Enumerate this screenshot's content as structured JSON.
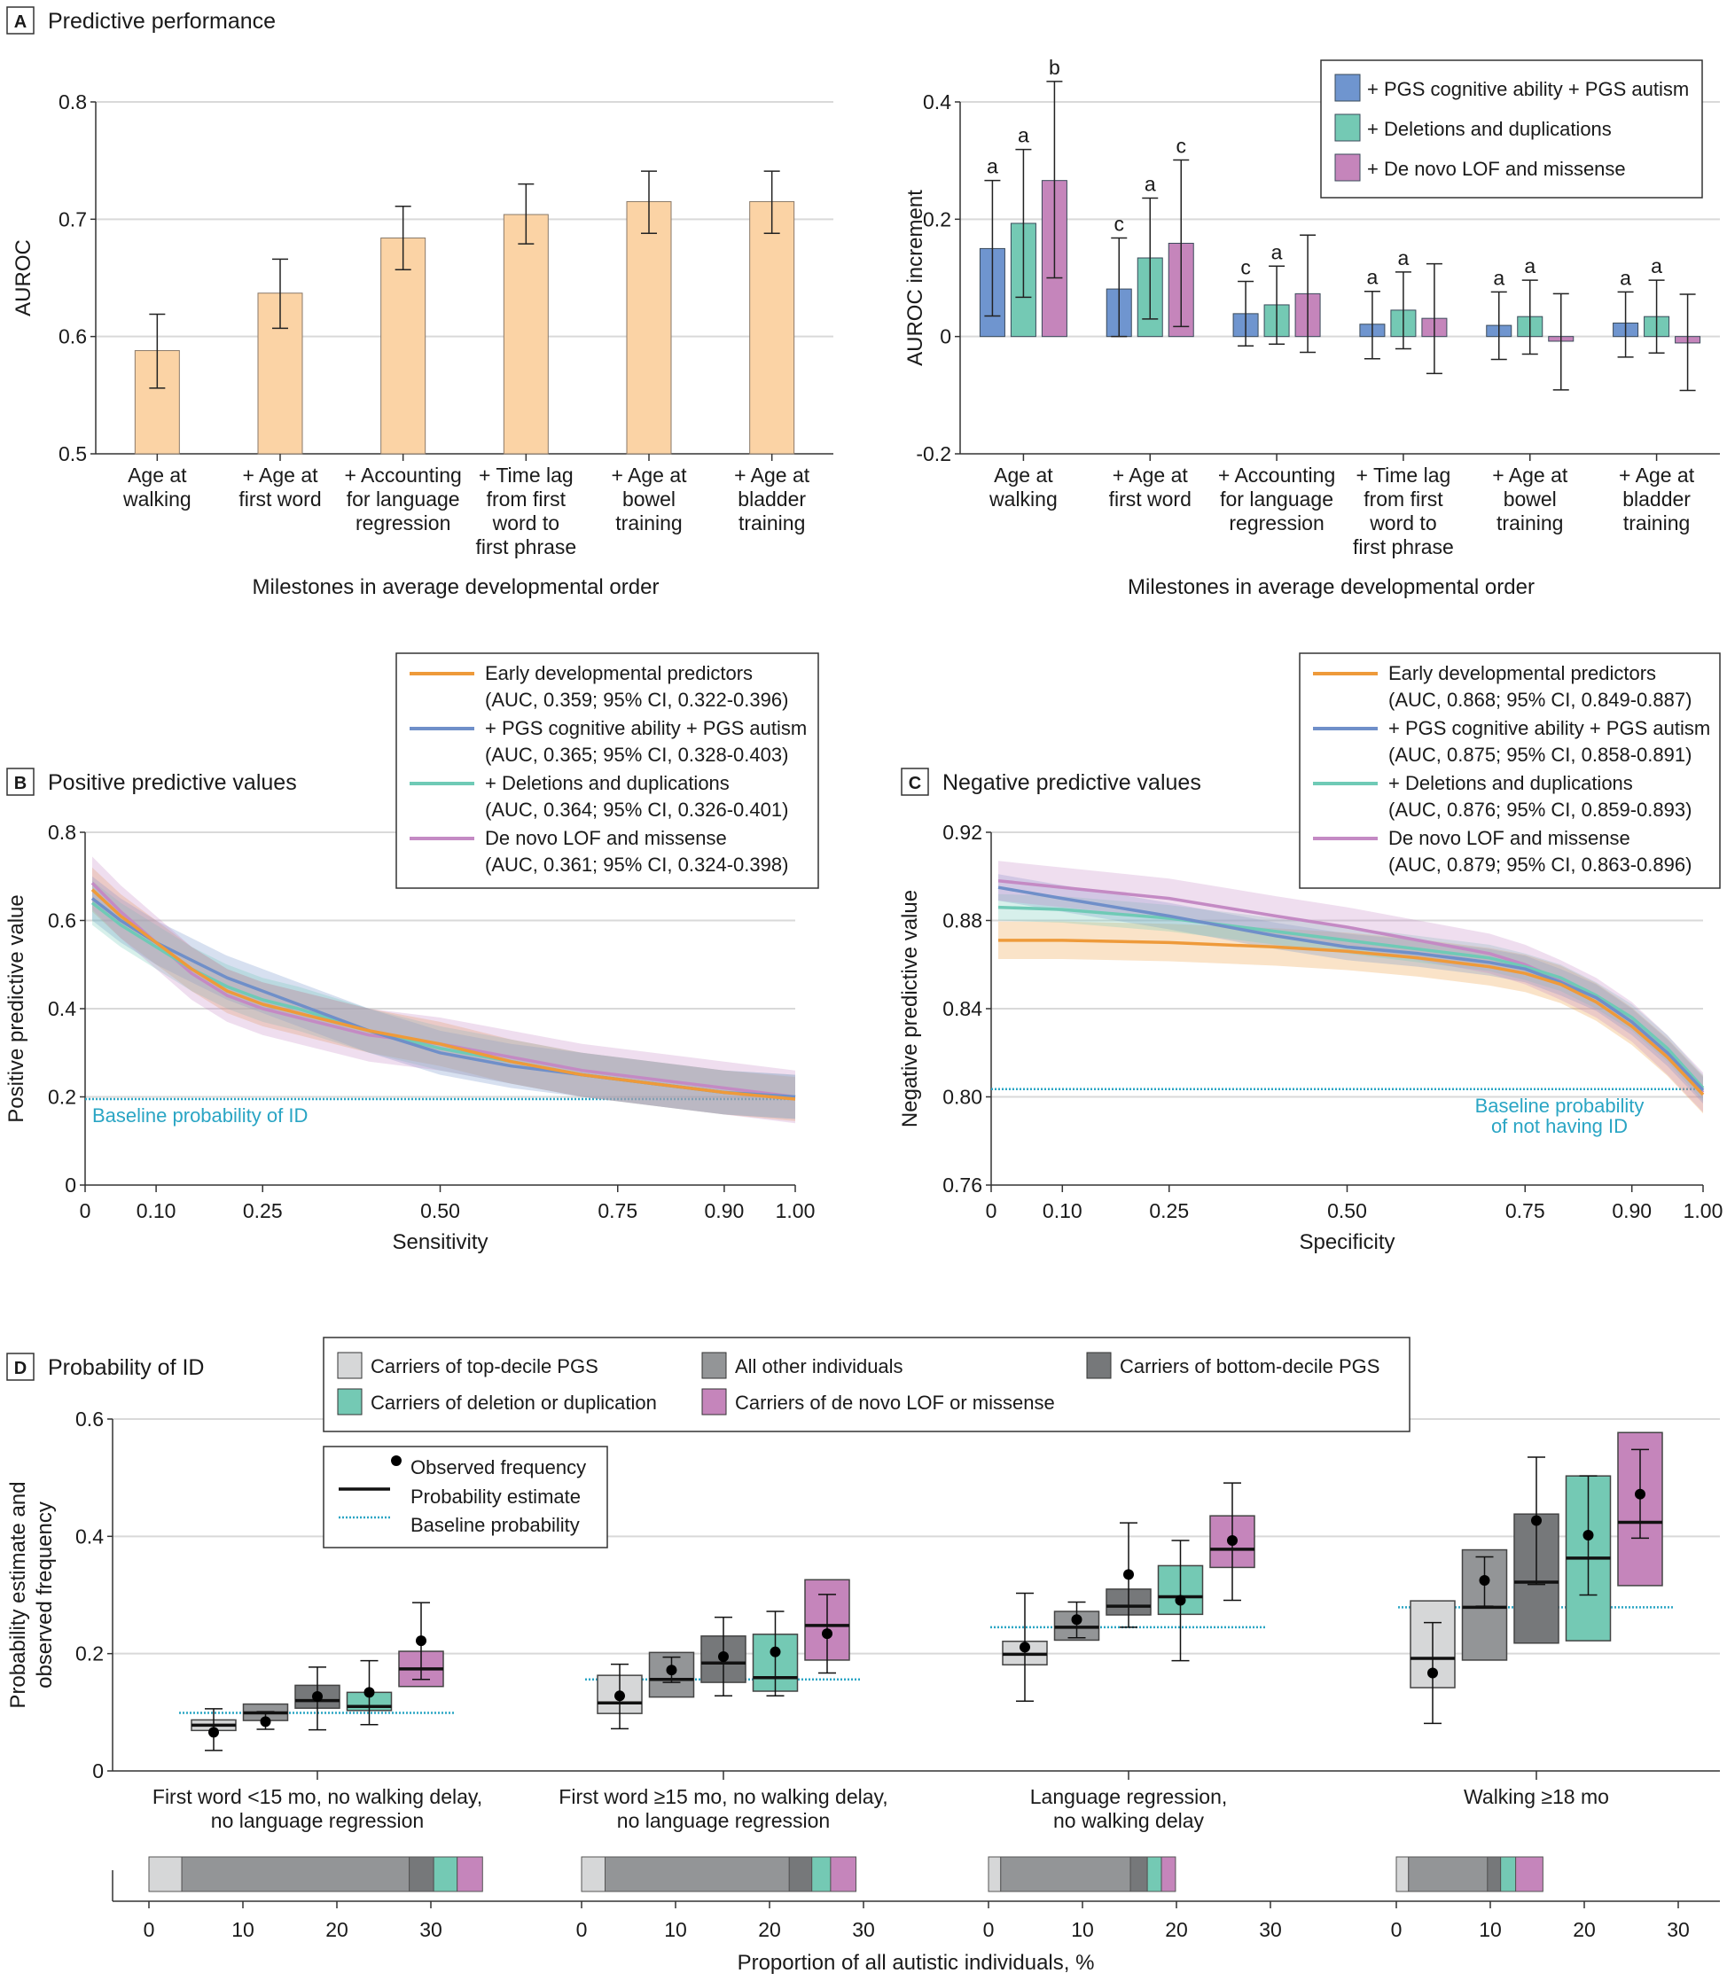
{
  "colors": {
    "orange_bar": "#fbd3a5",
    "blue": "#6f95cf",
    "teal": "#74c9b4",
    "pink": "#c585bb",
    "orange_line": "#ee9a3a",
    "blue_line": "#6f8fc9",
    "teal_line": "#6fcab6",
    "pink_line": "#c48ac4",
    "baseline": "#2aa5c4",
    "light_gray": "#d6d7d8",
    "mid_gray": "#939597",
    "dark_gray": "#76787a"
  },
  "panels": {
    "A": {
      "badge": "A",
      "title": "Predictive performance"
    },
    "B": {
      "badge": "B",
      "title": "Positive predictive values"
    },
    "C": {
      "badge": "C",
      "title": "Negative predictive values"
    },
    "D": {
      "badge": "D",
      "title": "Probability of ID"
    }
  },
  "chart_data": [
    {
      "id": "A-left",
      "type": "bar",
      "title": "Predictive performance",
      "xlabel": "Milestones in average developmental order",
      "ylabel": "AUROC",
      "ylim": [
        0.5,
        0.8
      ],
      "yticks": [
        "0.5",
        "0.6",
        "0.7",
        "0.8"
      ],
      "ytick_values": [
        0.5,
        0.6,
        0.7,
        0.8
      ],
      "grid": true,
      "categories": [
        [
          "Age at",
          "walking"
        ],
        [
          "+ Age at",
          "first word"
        ],
        [
          "+ Accounting",
          "for language",
          "regression"
        ],
        [
          "+ Time lag",
          "from first",
          "word to",
          "first phrase"
        ],
        [
          "+ Age at",
          "bowel",
          "training"
        ],
        [
          "+ Age at",
          "bladder",
          "training"
        ]
      ],
      "values": [
        0.588,
        0.637,
        0.684,
        0.704,
        0.715,
        0.715
      ],
      "ci_low": [
        0.556,
        0.607,
        0.657,
        0.679,
        0.688,
        0.688
      ],
      "ci_high": [
        0.619,
        0.666,
        0.711,
        0.73,
        0.741,
        0.741
      ]
    },
    {
      "id": "A-right",
      "type": "bar",
      "xlabel": "Milestones in average developmental order",
      "ylabel": "AUROC increment",
      "ylim": [
        -0.2,
        0.4
      ],
      "yticks": [
        "-0.2",
        "0",
        "0.2",
        "0.4"
      ],
      "ytick_values": [
        -0.2,
        0,
        0.2,
        0.4
      ],
      "grid": true,
      "legend_position": "top-right",
      "categories": [
        [
          "Age at",
          "walking"
        ],
        [
          "+ Age at",
          "first word"
        ],
        [
          "+ Accounting",
          "for language",
          "regression"
        ],
        [
          "+ Time lag",
          "from first",
          "word to",
          "first phrase"
        ],
        [
          "+ Age at",
          "bowel",
          "training"
        ],
        [
          "+ Age at",
          "bladder",
          "training"
        ]
      ],
      "series": [
        {
          "name": "+ PGS cognitive ability + PGS autism",
          "color_key": "blue",
          "values": [
            0.15,
            0.081,
            0.039,
            0.021,
            0.019,
            0.023
          ],
          "ci_low": [
            0.035,
            0.0,
            -0.016,
            -0.038,
            -0.039,
            -0.035
          ],
          "ci_high": [
            0.266,
            0.168,
            0.094,
            0.077,
            0.076,
            0.076
          ],
          "annotations": [
            "a",
            "c",
            "c",
            "a",
            "a",
            "a"
          ]
        },
        {
          "name": "+ Deletions and duplications",
          "color_key": "teal",
          "values": [
            0.193,
            0.134,
            0.054,
            0.045,
            0.034,
            0.034
          ],
          "ci_low": [
            0.067,
            0.03,
            -0.013,
            -0.021,
            -0.03,
            -0.028
          ],
          "ci_high": [
            0.319,
            0.236,
            0.12,
            0.11,
            0.096,
            0.096
          ],
          "annotations": [
            "a",
            "a",
            "a",
            "a",
            "a",
            "a"
          ]
        },
        {
          "name": "+ De novo LOF and missense",
          "color_key": "pink",
          "values": [
            0.266,
            0.159,
            0.073,
            0.031,
            -0.008,
            -0.011
          ],
          "ci_low": [
            0.1,
            0.017,
            -0.027,
            -0.063,
            -0.091,
            -0.092
          ],
          "ci_high": [
            0.435,
            0.301,
            0.173,
            0.124,
            0.073,
            0.072
          ],
          "annotations": [
            "b",
            "c",
            "",
            "",
            "",
            ""
          ]
        }
      ]
    },
    {
      "id": "B",
      "type": "line",
      "title": "Positive predictive values",
      "xlabel": "Sensitivity",
      "ylabel": "Positive predictive value",
      "xlim": [
        0,
        1
      ],
      "ylim": [
        0,
        0.8
      ],
      "xticks": [
        "0",
        "0.10",
        "0.25",
        "0.50",
        "0.75",
        "0.90",
        "1.00"
      ],
      "xtick_values": [
        0,
        0.1,
        0.25,
        0.5,
        0.75,
        0.9,
        1.0
      ],
      "yticks": [
        "0",
        "0.2",
        "0.4",
        "0.6",
        "0.8"
      ],
      "ytick_values": [
        0,
        0.2,
        0.4,
        0.6,
        0.8
      ],
      "grid": true,
      "legend_position": "top-right",
      "baseline": {
        "value": 0.195,
        "label": "Baseline probability of ID"
      },
      "x": [
        0.01,
        0.05,
        0.1,
        0.15,
        0.2,
        0.25,
        0.3,
        0.4,
        0.5,
        0.6,
        0.7,
        0.8,
        0.9,
        1.0
      ],
      "series": [
        {
          "name": "Early developmental predictors",
          "detail": "(AUC, 0.359; 95% CI, 0.322-0.396)",
          "color_key": "orange_line",
          "y": [
            0.67,
            0.61,
            0.55,
            0.49,
            0.44,
            0.41,
            0.39,
            0.35,
            0.32,
            0.28,
            0.25,
            0.23,
            0.21,
            0.195
          ],
          "band": 0.05
        },
        {
          "name": "+ PGS cognitive ability + PGS autism",
          "detail": "(AUC, 0.365; 95% CI, 0.328-0.403)",
          "color_key": "blue_line",
          "y": [
            0.65,
            0.6,
            0.55,
            0.51,
            0.47,
            0.44,
            0.41,
            0.35,
            0.3,
            0.27,
            0.25,
            0.23,
            0.21,
            0.2
          ],
          "band": 0.05
        },
        {
          "name": "+ Deletions and duplications",
          "detail": "(AUC, 0.364; 95% CI, 0.326-0.401)",
          "color_key": "teal_line",
          "y": [
            0.64,
            0.59,
            0.54,
            0.49,
            0.45,
            0.42,
            0.4,
            0.35,
            0.31,
            0.28,
            0.25,
            0.23,
            0.21,
            0.2
          ],
          "band": 0.05
        },
        {
          "name": "De novo LOF and missense",
          "detail": "(AUC, 0.361; 95% CI, 0.324-0.398)",
          "color_key": "pink_line",
          "y": [
            0.685,
            0.62,
            0.55,
            0.48,
            0.43,
            0.4,
            0.38,
            0.34,
            0.32,
            0.29,
            0.26,
            0.24,
            0.22,
            0.2
          ],
          "band": 0.06
        }
      ]
    },
    {
      "id": "C",
      "type": "line",
      "title": "Negative predictive values",
      "xlabel": "Specificity",
      "ylabel": "Negative predictive value",
      "xlim": [
        0,
        1
      ],
      "ylim": [
        0.76,
        0.92
      ],
      "xticks": [
        "0",
        "0.10",
        "0.25",
        "0.50",
        "0.75",
        "0.90",
        "1.00"
      ],
      "xtick_values": [
        0,
        0.1,
        0.25,
        0.5,
        0.75,
        0.9,
        1.0
      ],
      "yticks": [
        "0.76",
        "0.80",
        "0.84",
        "0.88",
        "0.92"
      ],
      "ytick_values": [
        0.76,
        0.8,
        0.84,
        0.88,
        0.92
      ],
      "grid": true,
      "legend_position": "top-right",
      "baseline": {
        "value": 0.8035,
        "label_line1": "Baseline probability",
        "label_line2": "of not having ID"
      },
      "x": [
        0.01,
        0.1,
        0.25,
        0.4,
        0.5,
        0.6,
        0.7,
        0.75,
        0.8,
        0.85,
        0.9,
        0.95,
        1.0
      ],
      "series": [
        {
          "name": "Early developmental predictors",
          "detail": "(AUC, 0.868; 95% CI, 0.849-0.887)",
          "color_key": "orange_line",
          "y": [
            0.871,
            0.871,
            0.87,
            0.868,
            0.866,
            0.863,
            0.859,
            0.856,
            0.851,
            0.843,
            0.832,
            0.818,
            0.801
          ],
          "band": 0.0085
        },
        {
          "name": "+ PGS cognitive ability + PGS autism",
          "detail": "(AUC, 0.875; 95% CI, 0.858-0.891)",
          "color_key": "blue_line",
          "y": [
            0.895,
            0.89,
            0.882,
            0.873,
            0.868,
            0.865,
            0.861,
            0.858,
            0.852,
            0.845,
            0.834,
            0.82,
            0.803
          ],
          "band": 0.006
        },
        {
          "name": "+ Deletions and duplications",
          "detail": "(AUC, 0.876; 95% CI, 0.859-0.893)",
          "color_key": "teal_line",
          "y": [
            0.886,
            0.885,
            0.881,
            0.875,
            0.871,
            0.867,
            0.863,
            0.859,
            0.854,
            0.846,
            0.836,
            0.822,
            0.804
          ],
          "band": 0.006
        },
        {
          "name": "De novo LOF and missense",
          "detail": "(AUC, 0.879; 95% CI, 0.863-0.896)",
          "color_key": "pink_line",
          "y": [
            0.898,
            0.895,
            0.89,
            0.882,
            0.877,
            0.871,
            0.865,
            0.86,
            0.853,
            0.845,
            0.834,
            0.819,
            0.802
          ],
          "band": 0.009
        }
      ]
    },
    {
      "id": "D",
      "type": "box",
      "title": "Probability of ID",
      "ylabel_line1": "Probability estimate and",
      "ylabel_line2": "observed frequency",
      "ylim": [
        0,
        0.6
      ],
      "yticks": [
        "0",
        "0.2",
        "0.4",
        "0.6"
      ],
      "ytick_values": [
        0,
        0.2,
        0.4,
        0.6
      ],
      "grid": true,
      "groups": [
        {
          "label_line1": "First word <15 mo, no walking delay,",
          "label_line2": "no language regression",
          "baseline": 0.099
        },
        {
          "label_line1": "First word ≥15 mo, no walking delay,",
          "label_line2": "no language regression",
          "baseline": 0.156
        },
        {
          "label_line1": "Language regression,",
          "label_line2": "no walking delay",
          "baseline": 0.245
        },
        {
          "label_line1": "Walking ≥18 mo",
          "label_line2": "",
          "baseline": 0.279
        }
      ],
      "categories": [
        {
          "name": "Carriers of top-decile PGS",
          "color_key": "light_gray"
        },
        {
          "name": "All other individuals",
          "color_key": "mid_gray"
        },
        {
          "name": "Carriers of bottom-decile PGS",
          "color_key": "dark_gray"
        },
        {
          "name": "Carriers of deletion or duplication",
          "color_key": "teal"
        },
        {
          "name": "Carriers of de novo LOF or missense",
          "color_key": "pink"
        }
      ],
      "boxes": [
        [
          {
            "low": 0.069,
            "high": 0.087,
            "estimate": 0.078,
            "observed": 0.066,
            "ci_low": 0.035,
            "ci_high": 0.106
          },
          {
            "low": 0.086,
            "high": 0.114,
            "estimate": 0.099,
            "observed": 0.084,
            "ci_low": 0.071,
            "ci_high": 0.101
          },
          {
            "low": 0.107,
            "high": 0.146,
            "estimate": 0.12,
            "observed": 0.127,
            "ci_low": 0.07,
            "ci_high": 0.177
          },
          {
            "low": 0.103,
            "high": 0.134,
            "estimate": 0.11,
            "observed": 0.134,
            "ci_low": 0.079,
            "ci_high": 0.188
          },
          {
            "low": 0.144,
            "high": 0.204,
            "estimate": 0.174,
            "observed": 0.222,
            "ci_low": 0.156,
            "ci_high": 0.287
          }
        ],
        [
          {
            "low": 0.098,
            "high": 0.163,
            "estimate": 0.116,
            "observed": 0.128,
            "ci_low": 0.072,
            "ci_high": 0.182
          },
          {
            "low": 0.126,
            "high": 0.202,
            "estimate": 0.156,
            "observed": 0.172,
            "ci_low": 0.151,
            "ci_high": 0.194
          },
          {
            "low": 0.151,
            "high": 0.23,
            "estimate": 0.184,
            "observed": 0.195,
            "ci_low": 0.128,
            "ci_high": 0.262
          },
          {
            "low": 0.136,
            "high": 0.233,
            "estimate": 0.159,
            "observed": 0.203,
            "ci_low": 0.128,
            "ci_high": 0.272
          },
          {
            "low": 0.189,
            "high": 0.326,
            "estimate": 0.248,
            "observed": 0.234,
            "ci_low": 0.167,
            "ci_high": 0.301
          }
        ],
        [
          {
            "low": 0.181,
            "high": 0.221,
            "estimate": 0.199,
            "observed": 0.211,
            "ci_low": 0.119,
            "ci_high": 0.303
          },
          {
            "low": 0.223,
            "high": 0.272,
            "estimate": 0.245,
            "observed": 0.258,
            "ci_low": 0.227,
            "ci_high": 0.288
          },
          {
            "low": 0.266,
            "high": 0.31,
            "estimate": 0.281,
            "observed": 0.335,
            "ci_low": 0.245,
            "ci_high": 0.423
          },
          {
            "low": 0.267,
            "high": 0.35,
            "estimate": 0.297,
            "observed": 0.291,
            "ci_low": 0.188,
            "ci_high": 0.393
          },
          {
            "low": 0.347,
            "high": 0.435,
            "estimate": 0.378,
            "observed": 0.393,
            "ci_low": 0.291,
            "ci_high": 0.491
          }
        ],
        [
          {
            "low": 0.142,
            "high": 0.29,
            "estimate": 0.192,
            "observed": 0.167,
            "ci_low": 0.081,
            "ci_high": 0.253
          },
          {
            "low": 0.189,
            "high": 0.377,
            "estimate": 0.279,
            "observed": 0.325,
            "ci_low": 0.281,
            "ci_high": 0.365
          },
          {
            "low": 0.218,
            "high": 0.438,
            "estimate": 0.322,
            "observed": 0.427,
            "ci_low": 0.318,
            "ci_high": 0.535
          },
          {
            "low": 0.222,
            "high": 0.503,
            "estimate": 0.363,
            "observed": 0.402,
            "ci_low": 0.3,
            "ci_high": 0.503
          },
          {
            "low": 0.316,
            "high": 0.577,
            "estimate": 0.424,
            "observed": 0.472,
            "ci_low": 0.397,
            "ci_high": 0.548
          }
        ]
      ],
      "key": {
        "observed": "Observed frequency",
        "estimate": "Probability estimate",
        "baseline": "Baseline probability"
      },
      "proportions": {
        "xlabel": "Proportion of all autistic individuals, %",
        "xticks": [
          "0",
          "10",
          "20",
          "30"
        ],
        "xtick_values": [
          0,
          10,
          20,
          30
        ],
        "groups": [
          [
            3.5,
            24.2,
            2.6,
            2.5,
            2.7
          ],
          [
            2.5,
            19.6,
            2.4,
            2.0,
            2.7
          ],
          [
            1.3,
            13.8,
            1.8,
            1.5,
            1.5
          ],
          [
            1.3,
            8.4,
            1.4,
            1.6,
            2.9
          ]
        ]
      }
    }
  ]
}
